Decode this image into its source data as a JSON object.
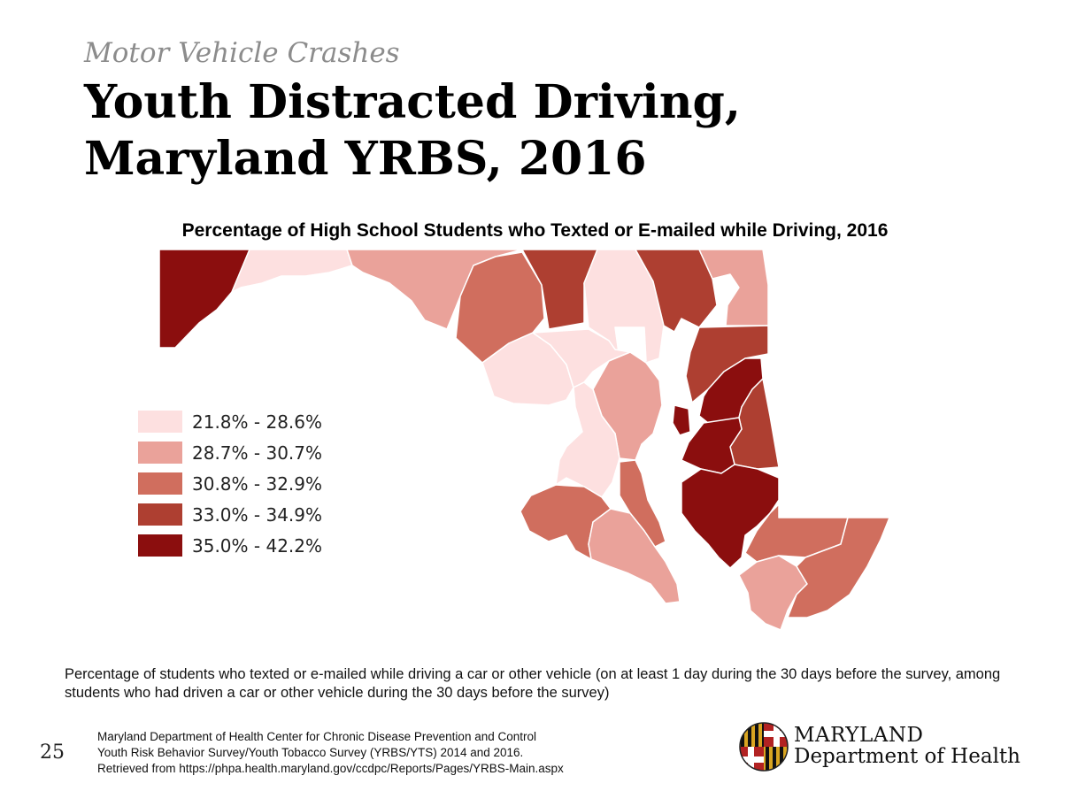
{
  "header": {
    "subtitle": "Motor Vehicle Crashes",
    "title_line1": "Youth Distracted Driving,",
    "title_line2": "Maryland YRBS, 2016"
  },
  "map": {
    "title": "Percentage of High School Students who Texted or E-mailed while Driving, 2016",
    "legend": [
      {
        "label": "21.8% - 28.6%",
        "color": "#fde0e0"
      },
      {
        "label": "28.7% - 30.7%",
        "color": "#eaa29a"
      },
      {
        "label": "30.8% - 32.9%",
        "color": "#d06e5e"
      },
      {
        "label": "33.0% - 34.9%",
        "color": "#ae3f31"
      },
      {
        "label": "35.0% - 42.2%",
        "color": "#8b0e0e"
      }
    ]
  },
  "caption": "Percentage of students who texted or e-mailed while driving a car or other vehicle (on at least 1 day during the 30 days before the survey, among students who had driven a car or other vehicle during the 30 days before the survey)",
  "footer": {
    "page_number": "25",
    "source_line1": "Maryland Department of Health Center for Chronic Disease Prevention and Control",
    "source_line2": "Youth Risk Behavior Survey/Youth Tobacco Survey (YRBS/YTS) 2014 and 2016.",
    "source_line3": "Retrieved from https://phpa.health.maryland.gov/ccdpc/Reports/Pages/YRBS-Main.aspx",
    "logo_line1": "MARYLAND",
    "logo_line2": "Department of Health"
  },
  "colors": {
    "bin1": "#fde0e0",
    "bin2": "#eaa29a",
    "bin3": "#d06e5e",
    "bin4": "#ae3f31",
    "bin5": "#8b0e0e",
    "no_data": "#ffffff"
  }
}
